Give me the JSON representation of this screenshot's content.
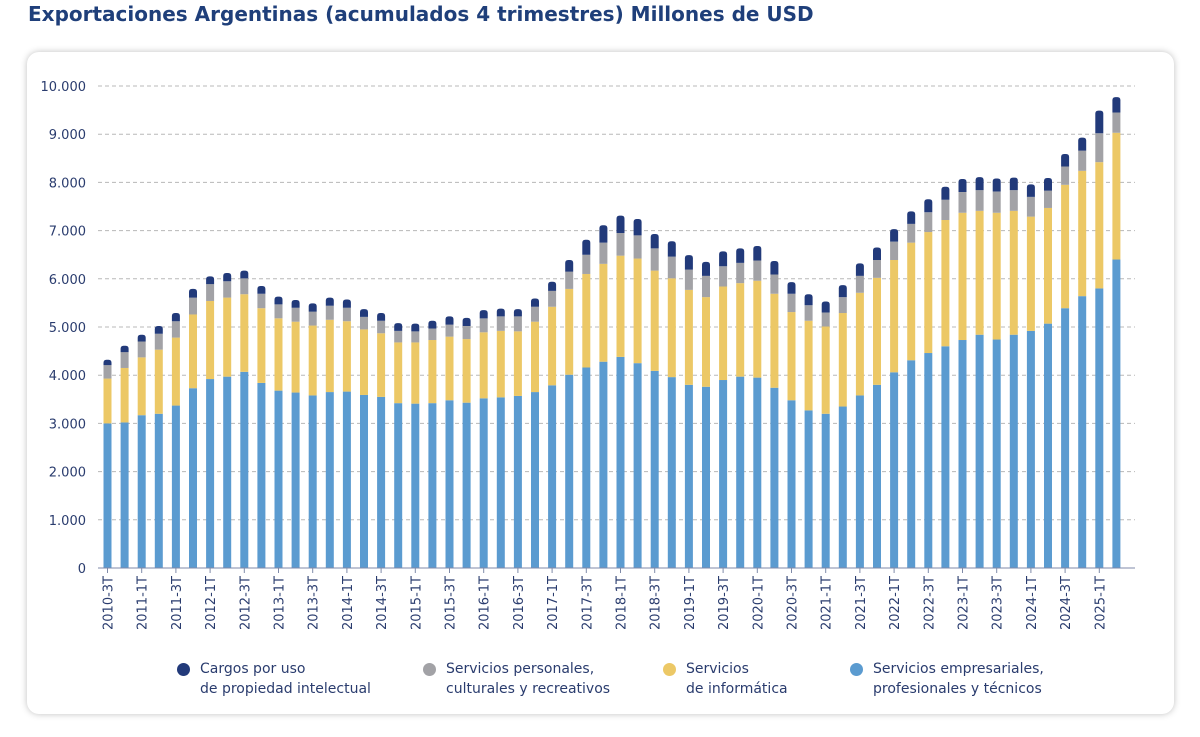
{
  "title": "Exportaciones Argentinas (acumulados 4 trimestres) Millones de USD",
  "colors": {
    "title": "#1f3f7a",
    "axis_text": "#2a3c6e",
    "grid": "#b8b8b8"
  },
  "chart_data": {
    "type": "bar",
    "stacked": true,
    "title": "",
    "xlabel": "",
    "ylabel": "",
    "ylim": [
      0,
      10000
    ],
    "yticks": [
      0,
      1000,
      2000,
      3000,
      4000,
      5000,
      6000,
      7000,
      8000,
      9000,
      10000
    ],
    "ytick_labels": [
      "0",
      "1.000",
      "2.000",
      "3.000",
      "4.000",
      "5.000",
      "6.000",
      "7.000",
      "8.000",
      "9.000",
      "10.000"
    ],
    "grid": "horizontal dashed",
    "legend_position": "bottom",
    "categories": [
      "2010-3T",
      "2010-4T",
      "2011-1T",
      "2011-2T",
      "2011-3T",
      "2011-4T",
      "2012-1T",
      "2012-2T",
      "2012-3T",
      "2012-4T",
      "2013-1T",
      "2013-2T",
      "2013-3T",
      "2013-4T",
      "2014-1T",
      "2014-2T",
      "2014-3T",
      "2014-4T",
      "2015-1T",
      "2015-2T",
      "2015-3T",
      "2015-4T",
      "2016-1T",
      "2016-2T",
      "2016-3T",
      "2016-4T",
      "2017-1T",
      "2017-2T",
      "2017-3T",
      "2017-4T",
      "2018-1T",
      "2018-2T",
      "2018-3T",
      "2018-4T",
      "2019-1T",
      "2019-2T",
      "2019-3T",
      "2019-4T",
      "2020-1T",
      "2020-2T",
      "2020-3T",
      "2020-4T",
      "2021-1T",
      "2021-2T",
      "2021-3T",
      "2021-4T",
      "2022-1T",
      "2022-2T",
      "2022-3T",
      "2022-4T",
      "2023-1T",
      "2023-2T",
      "2023-3T",
      "2023-4T",
      "2024-1T",
      "2024-2T",
      "2024-3T",
      "2024-4T",
      "2025-1T",
      "2025-2T"
    ],
    "x_tick_labels": [
      "2010-3T",
      "2011-1T",
      "2011-3T",
      "2012-1T",
      "2012-3T",
      "2013-1T",
      "2013-3T",
      "2014-1T",
      "2014-3T",
      "2015-1T",
      "2015-3T",
      "2016-1T",
      "2016-3T",
      "2017-1T",
      "2017-3T",
      "2018-1T",
      "2018-3T",
      "2019-1T",
      "2019-3T",
      "2020-1T",
      "2020-3T",
      "2021-1T",
      "2021-3T",
      "2022-1T",
      "2022-3T",
      "2023-1T",
      "2023-3T",
      "2024-1T",
      "2024-3T",
      "2025-1T"
    ],
    "series": [
      {
        "name": "Servicios empresariales, profesionales y técnicos",
        "legend_label": "Servicios empresariales,\nprofesionales y técnicos",
        "color": "#5b9bd0",
        "values": [
          3000,
          3020,
          3170,
          3200,
          3370,
          3730,
          3920,
          3970,
          4070,
          3840,
          3680,
          3640,
          3580,
          3650,
          3660,
          3590,
          3550,
          3420,
          3410,
          3420,
          3480,
          3430,
          3520,
          3540,
          3570,
          3650,
          3790,
          4010,
          4160,
          4280,
          4380,
          4250,
          4090,
          3960,
          3800,
          3760,
          3900,
          3970,
          3950,
          3740,
          3480,
          3270,
          3200,
          3350,
          3580,
          3800,
          4060,
          4310,
          4460,
          4600,
          4730,
          4840,
          4740,
          4840,
          4920,
          5070,
          5390,
          5640,
          5800,
          6400
        ]
      },
      {
        "name": "Servicios de informática",
        "legend_label": "Servicios\nde informática",
        "color": "#ecc866",
        "values": [
          930,
          1130,
          1200,
          1330,
          1410,
          1530,
          1620,
          1640,
          1610,
          1550,
          1500,
          1470,
          1450,
          1500,
          1460,
          1360,
          1320,
          1260,
          1270,
          1310,
          1320,
          1320,
          1370,
          1380,
          1340,
          1460,
          1630,
          1780,
          1940,
          2030,
          2100,
          2170,
          2080,
          2050,
          1970,
          1860,
          1940,
          1940,
          2010,
          1950,
          1830,
          1860,
          1810,
          1940,
          2130,
          2220,
          2330,
          2440,
          2510,
          2620,
          2640,
          2570,
          2630,
          2570,
          2370,
          2400,
          2560,
          2600,
          2620,
          2630
        ]
      },
      {
        "name": "Servicios personales, culturales y recreativos",
        "legend_label": "Servicios personales,\nculturales y recreativos",
        "color": "#a2a2a6",
        "values": [
          280,
          330,
          330,
          330,
          340,
          350,
          350,
          340,
          330,
          300,
          290,
          290,
          290,
          290,
          280,
          260,
          260,
          240,
          230,
          240,
          250,
          270,
          290,
          300,
          310,
          310,
          330,
          360,
          400,
          440,
          470,
          480,
          460,
          450,
          420,
          440,
          420,
          420,
          420,
          400,
          380,
          320,
          290,
          330,
          350,
          370,
          380,
          390,
          410,
          420,
          430,
          430,
          440,
          430,
          410,
          360,
          380,
          420,
          600,
          420
        ]
      },
      {
        "name": "Cargos por uso de propiedad intelectual",
        "legend_label": "Cargos por uso\nde propiedad intelectual",
        "color": "#223a7a",
        "values": [
          110,
          130,
          140,
          160,
          170,
          180,
          160,
          170,
          160,
          160,
          160,
          160,
          170,
          170,
          170,
          160,
          160,
          160,
          160,
          160,
          170,
          170,
          170,
          160,
          150,
          170,
          190,
          240,
          310,
          360,
          360,
          340,
          300,
          320,
          300,
          290,
          310,
          300,
          300,
          280,
          240,
          230,
          230,
          250,
          260,
          260,
          260,
          260,
          270,
          270,
          270,
          270,
          270,
          260,
          260,
          260,
          260,
          270,
          470,
          320
        ]
      }
    ]
  }
}
